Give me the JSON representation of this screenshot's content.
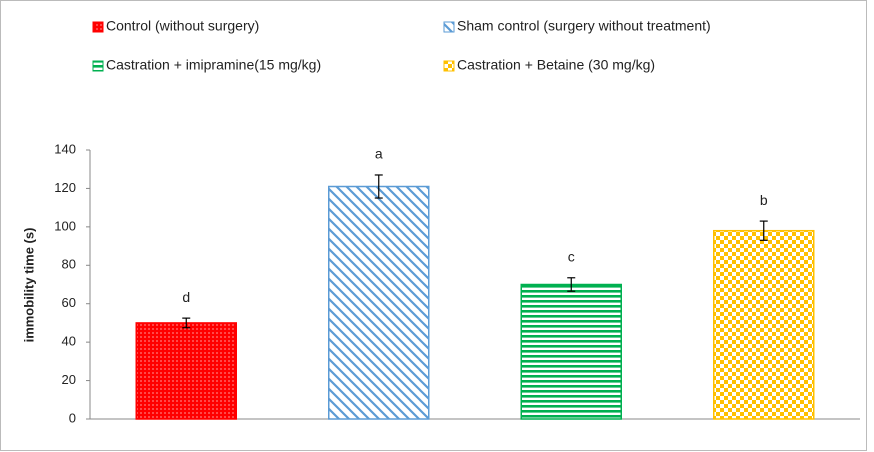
{
  "chart_data": {
    "type": "bar",
    "y_label": "immobility time (s)",
    "categories": [
      null
    ],
    "ylim": [
      0,
      140
    ],
    "yticks": [
      0,
      20,
      40,
      60,
      80,
      100,
      120,
      140
    ],
    "grid": false,
    "series": [
      {
        "name": "Control (without surgery)",
        "color": "#ff0000",
        "pattern": "dots",
        "values": [
          50
        ],
        "errors": [
          2.5
        ],
        "annotation": "d"
      },
      {
        "name": "Sham control (surgery without treatment)",
        "color": "#5b9bd5",
        "pattern": "diagonal",
        "values": [
          121
        ],
        "errors": [
          6
        ],
        "annotation": "a"
      },
      {
        "name": "Castration + imipramine(15 mg/kg)",
        "color": "#00b050",
        "pattern": "horizontal",
        "values": [
          70
        ],
        "errors": [
          3.5
        ],
        "annotation": "c"
      },
      {
        "name": "Castration + Betaine (30 mg/kg)",
        "color": "#ffc000",
        "pattern": "checker",
        "values": [
          98
        ],
        "errors": [
          5
        ],
        "annotation": "b"
      }
    ]
  }
}
